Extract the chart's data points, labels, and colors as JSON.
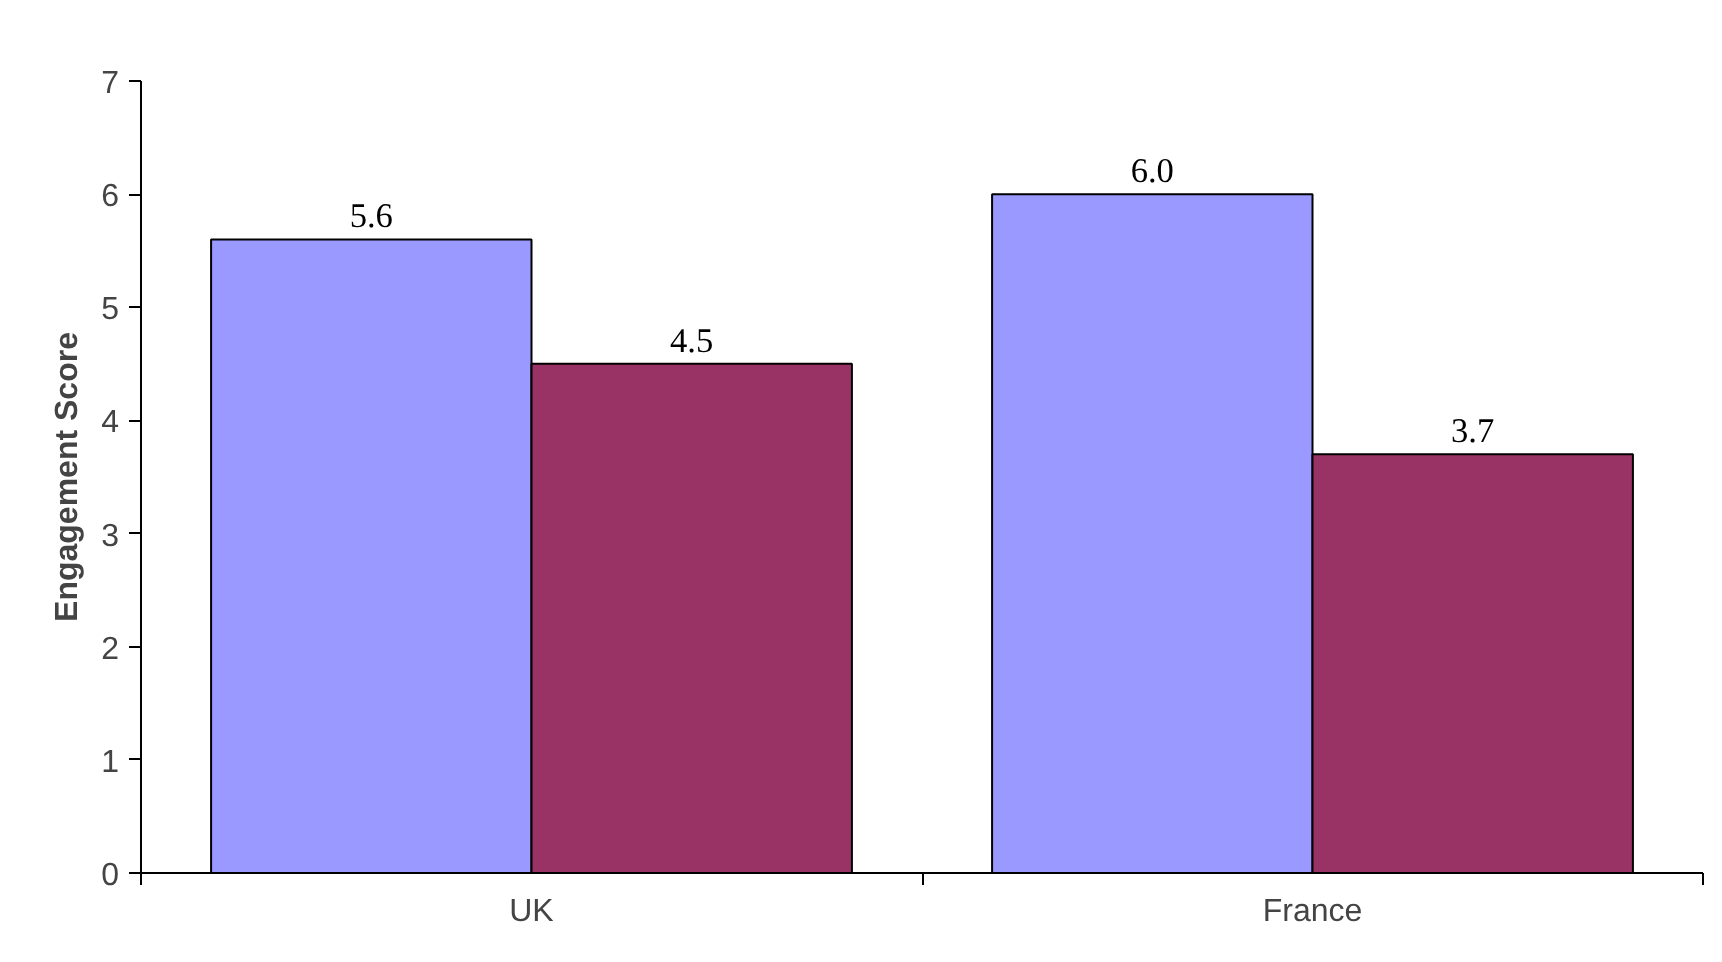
{
  "chart_data": {
    "type": "bar",
    "ylabel": "Engagement Score",
    "categories": [
      "UK",
      "France"
    ],
    "series": [
      {
        "color": "#9999ff",
        "values": [
          5.6,
          6.0
        ],
        "value_labels": [
          "5.6",
          "6.0"
        ]
      },
      {
        "color": "#993366",
        "values": [
          4.5,
          3.7
        ],
        "value_labels": [
          "4.5",
          "3.7"
        ]
      }
    ],
    "ylim": [
      0,
      7
    ],
    "yticks": [
      0,
      1,
      2,
      3,
      4,
      5,
      6,
      7
    ],
    "grid": false
  }
}
